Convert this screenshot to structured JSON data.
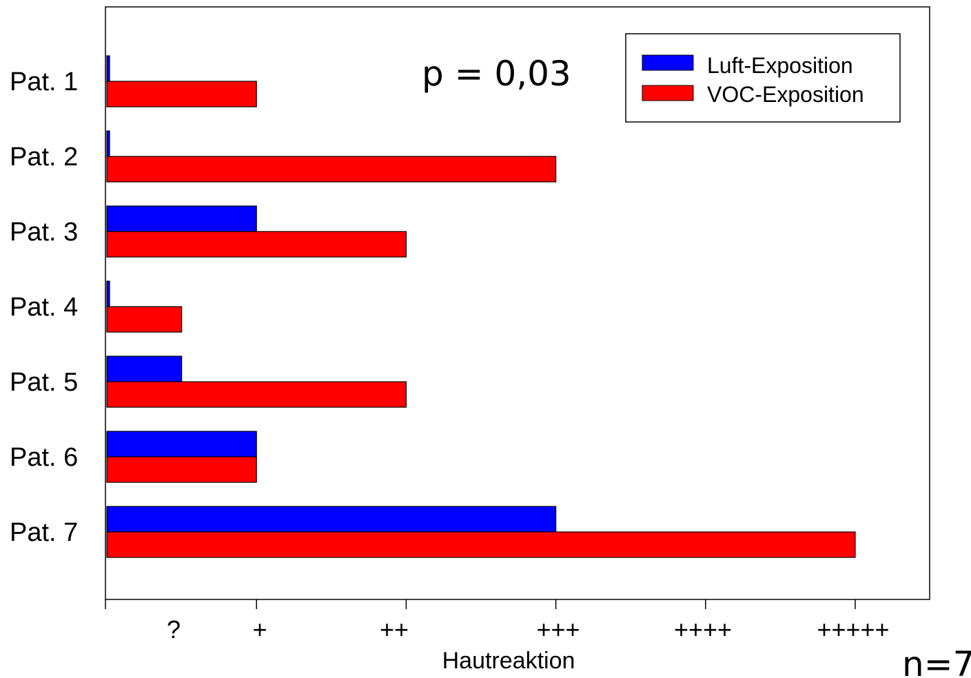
{
  "chart_data": {
    "type": "bar",
    "orientation": "horizontal",
    "categories": [
      "Pat. 1",
      "Pat. 2",
      "Pat. 3",
      "Pat. 4",
      "Pat. 5",
      "Pat. 6",
      "Pat. 7"
    ],
    "series": [
      {
        "name": "Luft-Exposition",
        "color": "#0000ff",
        "values": [
          0,
          0,
          1,
          0,
          0.5,
          1,
          3
        ]
      },
      {
        "name": "VOC-Exposition",
        "color": "#ff0000",
        "values": [
          1,
          3,
          2,
          0.5,
          2,
          1,
          5
        ]
      }
    ],
    "x_tick_labels": [
      "?",
      "+",
      "++",
      "+++",
      "++++",
      "+++++"
    ],
    "x_tick_label_values": [
      0.5,
      1,
      2,
      3,
      4,
      5
    ],
    "xlim": [
      0,
      5.5
    ],
    "xlabel": "Hautreaktion",
    "ylabel": "",
    "title": "",
    "grid": false,
    "legend_position": "top-right",
    "annotations": [
      "p = 0,03",
      "n=7"
    ]
  }
}
